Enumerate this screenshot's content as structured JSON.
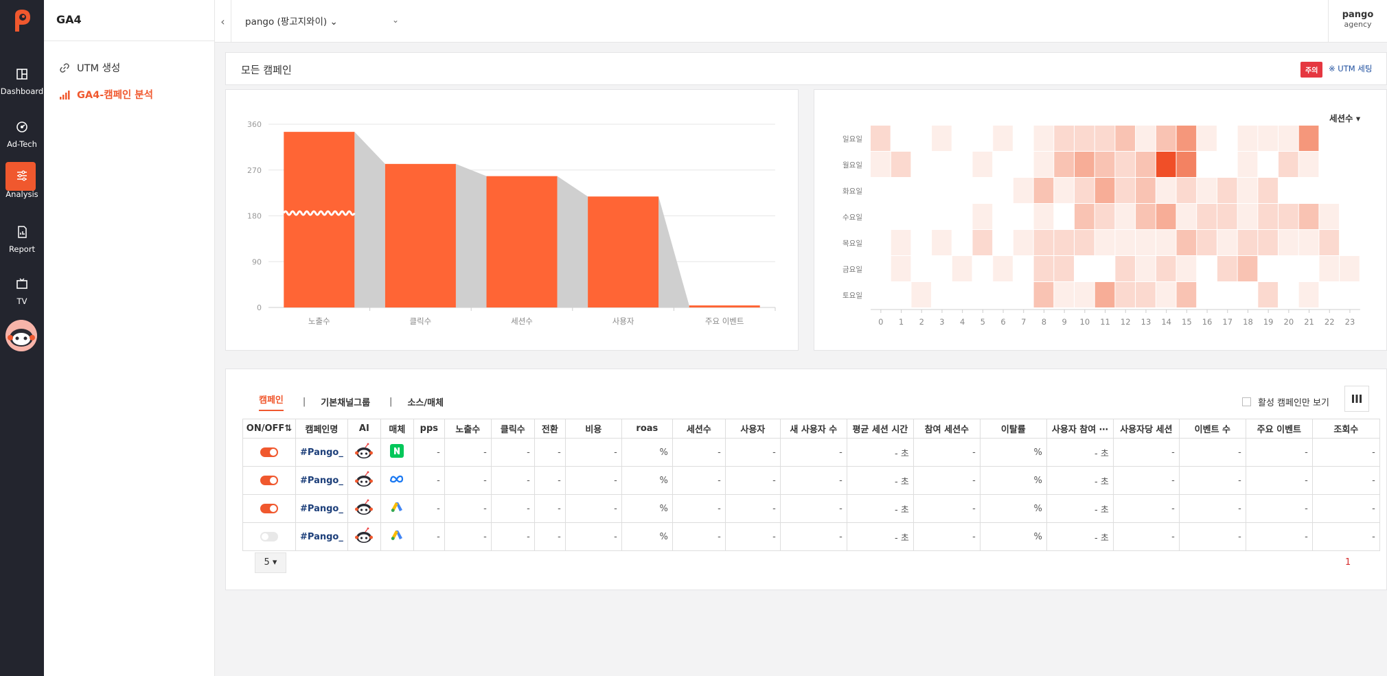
{
  "app": {
    "module_title": "GA4",
    "rail": [
      {
        "label": "Dashboard",
        "icon": "dashboard-icon"
      },
      {
        "label": "Ad-Tech",
        "icon": "gauge-icon"
      },
      {
        "label": "Analysis",
        "icon": "sliders-icon",
        "active": true
      },
      {
        "label": "Report",
        "icon": "report-icon"
      },
      {
        "label": "TV",
        "icon": "tv-icon"
      }
    ],
    "subnav": [
      {
        "label": "UTM 생성",
        "icon": "link-icon"
      },
      {
        "label": "GA4-캠페인 분석",
        "icon": "bar-signal-icon",
        "active": true
      }
    ]
  },
  "topbar": {
    "account": "pango (팡고지와이) ⌄",
    "property_caret": "⌄",
    "org_name": "pango",
    "org_sub": "agency"
  },
  "campaign_card": {
    "title": "모든 캠페인",
    "badge": "주의",
    "utm_link": "※ UTM 세팅"
  },
  "chart_data": [
    {
      "type": "bar",
      "categories": [
        "노출수",
        "클릭수",
        "세션수",
        "사용자",
        "주요 이벤트"
      ],
      "values": [
        345,
        282,
        258,
        218,
        4
      ],
      "yticks": [
        "360",
        "270",
        "180",
        "90",
        "0"
      ],
      "ylim": [
        0,
        360
      ],
      "note": "funnel with gray connector areas; first bar has axis-break wave"
    },
    {
      "type": "heatmap",
      "metric_label": "세션수 ▾",
      "rows": [
        "일요일",
        "월요일",
        "화요일",
        "수요일",
        "목요일",
        "금요일",
        "토요일"
      ],
      "cols": [
        "0",
        "1",
        "2",
        "3",
        "4",
        "5",
        "6",
        "7",
        "8",
        "9",
        "10",
        "11",
        "12",
        "13",
        "14",
        "15",
        "16",
        "17",
        "18",
        "19",
        "20",
        "21",
        "22",
        "23"
      ],
      "values": [
        [
          2,
          0,
          0,
          1,
          0,
          0,
          1,
          0,
          1,
          2,
          2,
          2,
          3,
          1,
          3,
          5,
          1,
          0,
          1,
          1,
          1,
          5,
          0,
          0
        ],
        [
          1,
          2,
          0,
          0,
          0,
          1,
          0,
          0,
          1,
          3,
          4,
          3,
          2,
          3,
          9,
          6,
          0,
          0,
          1,
          0,
          2,
          1,
          0,
          0
        ],
        [
          0,
          0,
          0,
          0,
          0,
          0,
          0,
          1,
          3,
          1,
          2,
          4,
          2,
          3,
          1,
          2,
          1,
          2,
          1,
          2,
          0,
          0,
          0,
          0
        ],
        [
          0,
          0,
          0,
          0,
          0,
          1,
          0,
          0,
          1,
          0,
          3,
          2,
          1,
          3,
          4,
          1,
          2,
          2,
          1,
          2,
          2,
          3,
          1,
          0
        ],
        [
          0,
          1,
          0,
          1,
          0,
          2,
          0,
          1,
          2,
          2,
          2,
          1,
          1,
          1,
          1,
          3,
          2,
          1,
          2,
          2,
          1,
          1,
          2,
          0
        ],
        [
          0,
          1,
          0,
          0,
          1,
          0,
          1,
          0,
          2,
          2,
          0,
          0,
          2,
          1,
          2,
          1,
          0,
          2,
          3,
          0,
          0,
          0,
          1,
          1
        ],
        [
          0,
          0,
          1,
          0,
          0,
          0,
          0,
          0,
          3,
          1,
          1,
          4,
          2,
          2,
          1,
          3,
          0,
          0,
          0,
          2,
          0,
          1,
          0,
          0
        ]
      ]
    }
  ],
  "table": {
    "tabs": [
      "캠페인",
      "기본채널그룹",
      "소스/매체"
    ],
    "tab_sep": "|",
    "active_only_label": "활성 캠페인만 보기",
    "columns": [
      "ON/OFF⇅",
      "캠페인명",
      "AI",
      "매체",
      "pps",
      "노출수",
      "클릭수",
      "전환",
      "비용",
      "roas",
      "세션수",
      "사용자",
      "새 사용자 수",
      "평균 세션 시간",
      "참여 세션수",
      "이탈률",
      "사용자 참여 ⋯",
      "사용자당 세션",
      "이벤트 수",
      "주요 이벤트",
      "조회수"
    ],
    "rows": [
      {
        "on": true,
        "name": "#Pango_",
        "media": "naver-icon",
        "vals": [
          "-",
          "-",
          "-",
          "-",
          "-",
          "%",
          "-",
          "-",
          "-",
          "- 초",
          "-",
          "%",
          "- 초",
          "-",
          "-",
          "-",
          "-"
        ]
      },
      {
        "on": true,
        "name": "#Pango_",
        "media": "meta-icon",
        "vals": [
          "-",
          "-",
          "-",
          "-",
          "-",
          "%",
          "-",
          "-",
          "-",
          "- 초",
          "-",
          "%",
          "- 초",
          "-",
          "-",
          "-",
          "-"
        ]
      },
      {
        "on": true,
        "name": "#Pango_",
        "media": "google-ads-icon",
        "vals": [
          "-",
          "-",
          "-",
          "-",
          "-",
          "%",
          "-",
          "-",
          "-",
          "- 초",
          "-",
          "%",
          "- 초",
          "-",
          "-",
          "-",
          "-"
        ]
      },
      {
        "on": false,
        "name": "#Pango_",
        "media": "google-ads-icon",
        "vals": [
          "-",
          "-",
          "-",
          "-",
          "-",
          "%",
          "-",
          "-",
          "-",
          "- 초",
          "-",
          "%",
          "- 초",
          "-",
          "-",
          "-",
          "-"
        ]
      }
    ],
    "page_size": "5 ▾",
    "page": "1"
  },
  "colors": {
    "accent": "#f0582e",
    "rail_bg": "#23252e",
    "badge": "#e53740",
    "link": "#1d4e9e"
  }
}
